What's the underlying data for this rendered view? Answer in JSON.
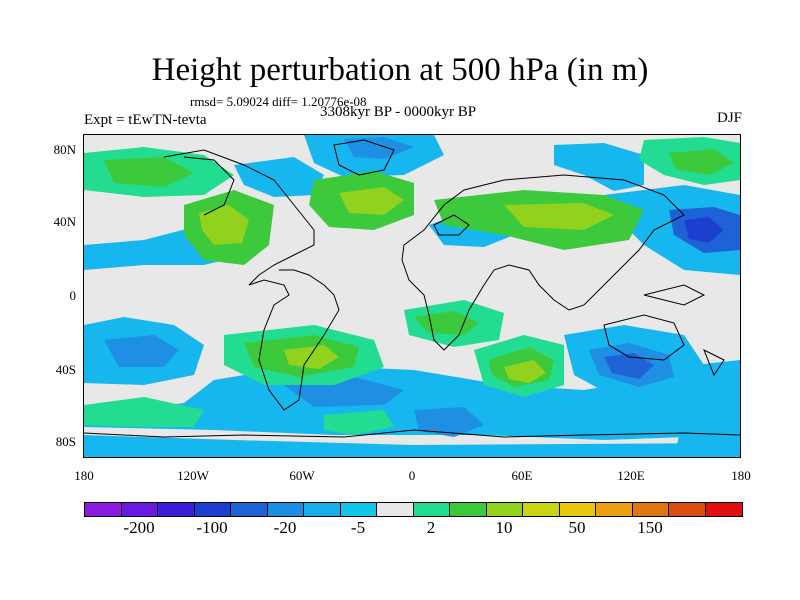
{
  "title": "Height perturbation at 500 hPa (in m)",
  "stats": "rmsd= 5.09024 diff= 1.20776e-08",
  "experiment": "Expt = tEwTN-tevta",
  "period": "3308kyr BP - 0000kyr BP",
  "season": "DJF",
  "lat_ticks": [
    "80N",
    "40N",
    "0",
    "40S",
    "80S"
  ],
  "lon_ticks": [
    "180",
    "120W",
    "60W",
    "0",
    "60E",
    "120E",
    "180"
  ],
  "colorbar": {
    "colors": [
      "#8a1be0",
      "#6a1ae0",
      "#3c1fd8",
      "#1c3fd0",
      "#1e63d6",
      "#1a8ee2",
      "#17aeee",
      "#10c6ea",
      "#e8e8e8",
      "#22dc92",
      "#3cc93c",
      "#90d21e",
      "#c8d414",
      "#e8c80e",
      "#eaa010",
      "#e0760f",
      "#dd4d0f",
      "#e01010"
    ],
    "labels": [
      "-200",
      "-100",
      "-20",
      "-5",
      "2",
      "10",
      "50",
      "150"
    ]
  },
  "colors": {
    "background": "#e8e8e8",
    "coast": "#000000"
  }
}
